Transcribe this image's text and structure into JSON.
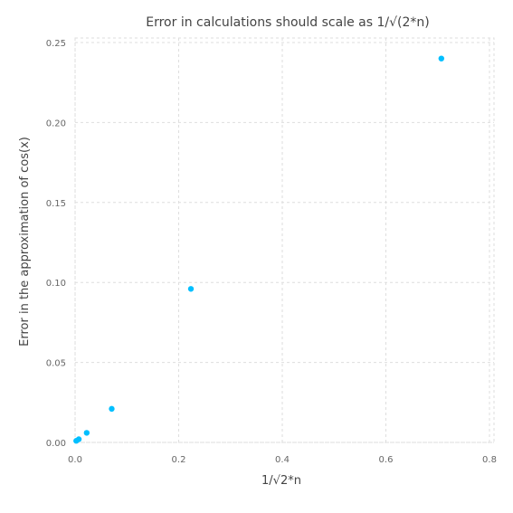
{
  "chart_data": {
    "type": "scatter",
    "title": "Error in calculations should scale as 1/√(2*n)",
    "xlabel": "1/√2*n",
    "ylabel": "Error in the approximation of cos(x)",
    "xlim": [
      0,
      0.8
    ],
    "ylim": [
      0,
      0.25
    ],
    "xticks": [
      0.0,
      0.2,
      0.4,
      0.6,
      0.8
    ],
    "xtick_labels": [
      "0.0",
      "0.2",
      "0.4",
      "0.6",
      "0.8"
    ],
    "yticks": [
      0.0,
      0.05,
      0.1,
      0.15,
      0.2,
      0.25
    ],
    "ytick_labels": [
      "0.00",
      "0.05",
      "0.10",
      "0.15",
      "0.20",
      "0.25"
    ],
    "grid": true,
    "legend": "none",
    "series": [
      {
        "color": "#00bfff",
        "x": [
          0.7071,
          0.2236,
          0.0707,
          0.0224,
          0.0071,
          0.0022
        ],
        "y": [
          0.24,
          0.096,
          0.021,
          0.006,
          0.002,
          0.001
        ]
      }
    ]
  }
}
